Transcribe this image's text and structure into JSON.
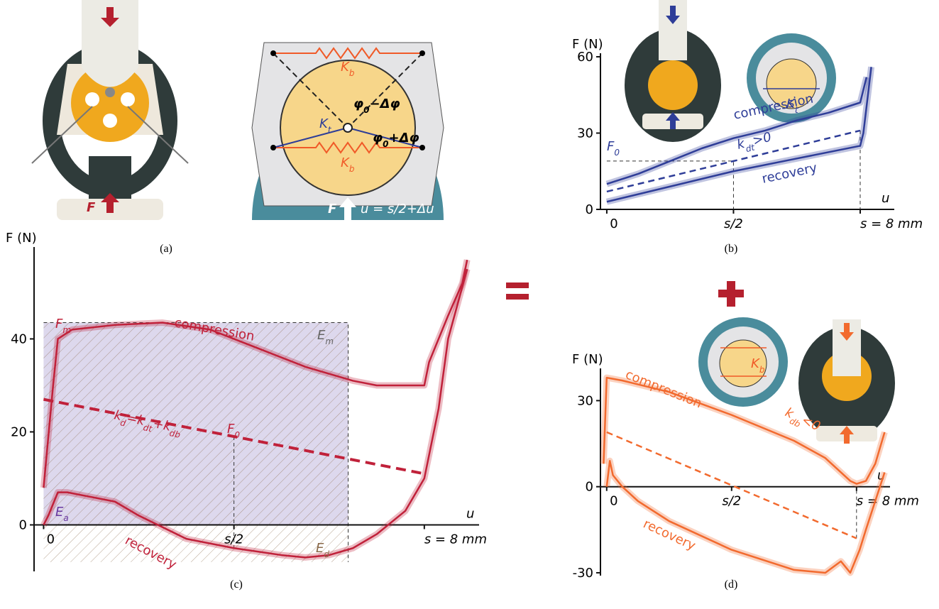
{
  "panel_labels": [
    "(a)",
    "(b)",
    "(c)",
    "(d)"
  ],
  "panel_a": {
    "photo_force": "F",
    "spring_top": [
      "K",
      "b"
    ],
    "spring_bottom": [
      "K",
      "b"
    ],
    "torsion": [
      "K",
      "t"
    ],
    "angle_top": [
      "φ",
      "0",
      "−Δφ"
    ],
    "angle_bottom": [
      "φ",
      "0",
      "+Δφ"
    ],
    "force": "F",
    "displacement": [
      "u = s/2+Δu"
    ]
  },
  "insets": {
    "b_torsion": [
      "K",
      "t"
    ],
    "d_spring": [
      "K",
      "b"
    ]
  },
  "chart_data": [
    {
      "type": "line",
      "y_label": "F (N)",
      "x_label": "u",
      "xlim": [
        -0.2,
        9.3
      ],
      "ylim": [
        0,
        60
      ],
      "yticks": [
        0,
        30,
        60
      ],
      "xticks": [
        0,
        {
          "value": 4,
          "label": "s/2"
        },
        {
          "value": 8,
          "label": "s = 8 mm"
        }
      ],
      "series": [
        {
          "name": "compression",
          "color": "#2e3d98",
          "x": [
            0,
            1,
            2,
            3,
            4,
            5,
            6,
            7,
            8,
            8.2
          ],
          "values": [
            10,
            14,
            19,
            24,
            28,
            31,
            35,
            38,
            42,
            52
          ]
        },
        {
          "name": "recovery",
          "color": "#2e3d98",
          "x": [
            8.35,
            8.1,
            8,
            6,
            4,
            2,
            0
          ],
          "values": [
            56,
            30,
            25,
            20,
            15,
            9,
            3
          ]
        }
      ],
      "trend": {
        "label": [
          "k",
          "dt",
          ">0"
        ],
        "x": [
          0,
          8
        ],
        "values": [
          7,
          31
        ]
      },
      "annotations": [
        [
          "F",
          "0"
        ]
      ]
    },
    {
      "type": "line",
      "y_label": "F (N)",
      "x_label": "u",
      "xlim": [
        -0.2,
        9.3
      ],
      "ylim": [
        -10,
        59
      ],
      "yticks": [
        0,
        20,
        40
      ],
      "xticks": [
        0,
        {
          "value": 4,
          "label": "s/2"
        },
        {
          "value": 8,
          "label": "s = 8 mm"
        }
      ],
      "series": [
        {
          "name": "compression",
          "color": "#c0213a",
          "x": [
            0,
            0.2,
            0.3,
            0.6,
            1.5,
            2.5,
            3.5,
            4.5,
            5.5,
            6.5,
            7,
            8,
            8.1,
            8.5,
            8.8,
            8.9
          ],
          "values": [
            8,
            30,
            40,
            42,
            43,
            43.5,
            42,
            38,
            34,
            31,
            30,
            30,
            35,
            45,
            52,
            57
          ]
        },
        {
          "name": "recovery",
          "color": "#c0213a",
          "x": [
            8.9,
            8.5,
            8.3,
            8.1,
            8,
            7.6,
            7,
            6.5,
            6,
            5.5,
            5,
            4,
            3,
            2,
            1.5,
            0.5,
            0.3,
            0.1,
            0
          ],
          "values": [
            55,
            40,
            25,
            15,
            10,
            3,
            -2,
            -5,
            -6.5,
            -7,
            -6.5,
            -5,
            -3,
            2,
            5,
            7,
            7,
            2,
            0
          ]
        }
      ],
      "trend": {
        "label": [
          "k",
          "d",
          "=k",
          "dt",
          "+k",
          "db"
        ],
        "x": [
          0,
          8
        ],
        "values": [
          27,
          11
        ]
      },
      "annotations": [
        [
          "F",
          "m"
        ],
        [
          "E",
          "m"
        ],
        [
          "E",
          "a"
        ],
        [
          "E",
          "d"
        ],
        [
          "F",
          "0"
        ]
      ]
    },
    {
      "type": "line",
      "y_label": "F (N)",
      "x_label": "u",
      "xlim": [
        -0.2,
        9.3
      ],
      "ylim": [
        -31,
        40
      ],
      "yticks": [
        -30,
        0,
        30
      ],
      "xticks": [
        0,
        {
          "value": 4,
          "label": "s/2"
        },
        {
          "value": 8,
          "label": "s = 8 mm"
        }
      ],
      "series": [
        {
          "name": "compression",
          "color": "#f26a2e",
          "x": [
            -0.1,
            0,
            0.5,
            2,
            4,
            6,
            7,
            7.8,
            8,
            8.3,
            8.6,
            8.9
          ],
          "values": [
            8,
            38,
            37,
            33,
            25,
            16,
            10,
            2,
            1,
            2,
            8,
            19
          ]
        },
        {
          "name": "recovery",
          "color": "#f26a2e",
          "x": [
            8.9,
            8.6,
            8.3,
            8.1,
            7.8,
            7.5,
            7,
            6,
            4,
            2,
            1,
            0.5,
            0.2,
            0.1,
            0
          ],
          "values": [
            5,
            -5,
            -15,
            -22,
            -30,
            -26,
            -30,
            -29,
            -22,
            -12,
            -5,
            0,
            4,
            9,
            0
          ]
        }
      ],
      "trend": {
        "label": [
          "k",
          "db",
          "<0"
        ],
        "x": [
          0,
          8
        ],
        "values": [
          19,
          -18
        ]
      },
      "annotations": []
    }
  ]
}
